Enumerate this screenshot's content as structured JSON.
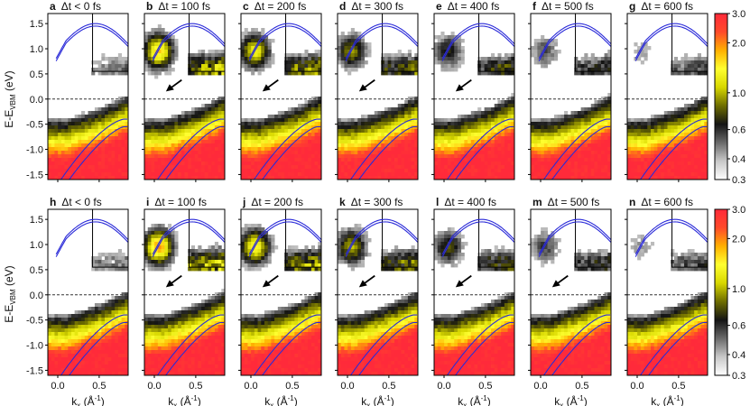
{
  "figure": {
    "rows": [
      {
        "panels": [
          {
            "letter": "a",
            "delay": "Δt < 0 fs",
            "arrow": false
          },
          {
            "letter": "b",
            "delay": "Δt = 100 fs",
            "arrow": true
          },
          {
            "letter": "c",
            "delay": "Δt = 200 fs",
            "arrow": true
          },
          {
            "letter": "d",
            "delay": "Δt = 300 fs",
            "arrow": true
          },
          {
            "letter": "e",
            "delay": "Δt = 400 fs",
            "arrow": true
          },
          {
            "letter": "f",
            "delay": "Δt = 500 fs",
            "arrow": false
          },
          {
            "letter": "g",
            "delay": "Δt = 600 fs",
            "arrow": false
          }
        ]
      },
      {
        "panels": [
          {
            "letter": "h",
            "delay": "Δt < 0 fs",
            "arrow": false
          },
          {
            "letter": "i",
            "delay": "Δt = 100 fs",
            "arrow": true
          },
          {
            "letter": "j",
            "delay": "Δt = 200 fs",
            "arrow": true
          },
          {
            "letter": "k",
            "delay": "Δt = 300 fs",
            "arrow": true
          },
          {
            "letter": "l",
            "delay": "Δt = 400 fs",
            "arrow": true
          },
          {
            "letter": "m",
            "delay": "Δt = 500 fs",
            "arrow": true
          },
          {
            "letter": "n",
            "delay": "Δt = 600 fs",
            "arrow": false
          }
        ]
      }
    ],
    "y_axis_label": "E-E",
    "y_axis_subscript": "VBM",
    "y_axis_unit": " (eV)",
    "y_ticks": [
      "1.5",
      "1.0",
      "0.5",
      "0.0",
      "-0.5",
      "-1.0",
      "-1.5"
    ],
    "y_tick_values": [
      1.5,
      1.0,
      0.5,
      0.0,
      -0.5,
      -1.0,
      -1.5
    ],
    "y_range": [
      -1.6,
      1.7
    ],
    "x_ticks": [
      "0.0",
      "0.5"
    ],
    "x_tick_values": [
      0.0,
      0.5
    ],
    "x_range": [
      -0.12,
      0.85
    ],
    "x_axis_label_k": "k",
    "x_axis_label_sub": "x",
    "x_axis_label_unit": " (Å",
    "x_axis_label_exp": "-1",
    "x_axis_label_close": ")",
    "colorbar_ticks": [
      "3.0",
      "2.0",
      "1.0",
      "0.6",
      "0.4",
      "0.3"
    ],
    "colorbar_tick_values": [
      3.0,
      2.0,
      1.0,
      0.6,
      0.4,
      0.3
    ],
    "colorbar_range": [
      0.3,
      3.0
    ],
    "colors": {
      "band_line": "#2a2ad8",
      "fermi_line": "#333333",
      "colormap": [
        "#ffffff",
        "#c8c8c8",
        "#6a6a6a",
        "#141414",
        "#6e6d00",
        "#d8d800",
        "#ffff30",
        "#ffb000",
        "#ff4a2a",
        "#ff2a3a"
      ]
    }
  }
}
